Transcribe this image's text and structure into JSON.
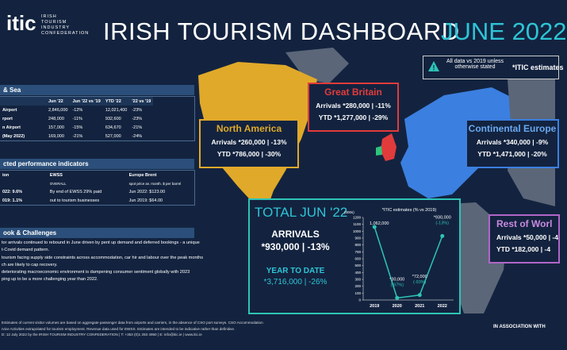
{
  "header": {
    "logo": "itic",
    "org": "IRISH TOURISM INDUSTRY CONFEDERATION",
    "title": "IRISH TOURISM DASHBOARD",
    "period": "JUNE 2022"
  },
  "notice": {
    "text": "All data vs 2019 unless otherwise stated",
    "estimates": "*ITIC estimates"
  },
  "air_sea": {
    "title": "& Sea",
    "columns": [
      "Jun '22",
      "Jun '22 vs '19",
      "YTD '22",
      "'22 vs '19"
    ],
    "rows": [
      [
        "Airport",
        "2,846,000",
        "-12%",
        "12,021,400",
        "-23%"
      ],
      [
        "rport",
        "248,000",
        "-11%",
        "932,600",
        "-23%"
      ],
      [
        "n Airport",
        "157,000",
        "-15%",
        "634,670",
        "-21%"
      ],
      [
        "(May 2022)",
        "169,000",
        "-21%",
        "527,000",
        "-24%"
      ]
    ]
  },
  "indicators": {
    "title": "cted performance indicators",
    "columns": [
      "ion",
      "EWSS",
      "Europe Brent"
    ],
    "subheads": [
      "OVERALL",
      "spot price av. month. $ per barrel"
    ],
    "rows": [
      [
        "022: 9.6%",
        "By end of EWSS 29% paid",
        "Jun 2022: $123.00"
      ],
      [
        "019: 1.1%",
        "out to tourism businesses",
        "Jun 2019: $64.00"
      ]
    ]
  },
  "outlook": {
    "title": "ook & Challenges",
    "lines": [
      "tor arrivals continued to rebound in June driven by pent up demand and deferred bookings - a unique",
      "t-Covid demand pattern.",
      "tourism facing supply side constraints across accommodation, car hir and labour over the peak months",
      "ch are likely to cap recovery.",
      "deteriorating macroeconomic environment is dampening consumer sentiment globally with 2023",
      "ping up to be a more challenging year than 2022."
    ]
  },
  "regions": [
    {
      "name": "Great Britain",
      "arrivals": "Arrivals *280,000 | -11%",
      "ytd": "YTD *1,277,000 | -29%"
    },
    {
      "name": "North America",
      "arrivals": "Arrivals *260,000 | -13%",
      "ytd": "YTD *786,000 | -30%"
    },
    {
      "name": "Continental Europe",
      "arrivals": "Arrivals *340,000 | -9%",
      "ytd": "YTD *1,471,000 | -20%"
    },
    {
      "name": "Rest of Worl",
      "arrivals": "Arrivals *50,000 | -4",
      "ytd": "YTD *182,000 | -4"
    }
  ],
  "total": {
    "title": "TOTAL JUN '22",
    "arrivals_label": "ARRIVALS",
    "arrivals": "*930,000 | -13%",
    "ytd_label": "YEAR TO DATE",
    "ytd": "*3,716,000 | -26%"
  },
  "chart_data": {
    "type": "line",
    "subtitle": "*ITIC estimates (% vs 2019)",
    "y_label": "(000s)",
    "categories": [
      "2019",
      "2020",
      "2021",
      "2022"
    ],
    "values": [
      1062,
      30,
      72,
      930
    ],
    "value_labels": [
      "1,062,000",
      "*30,000",
      "*72,000",
      "*930,000"
    ],
    "change_labels": [
      null,
      "(-97%)",
      "(-93%)",
      "(-13%)"
    ],
    "color": "#2ec4b6",
    "ylim": [
      0,
      1200
    ],
    "yticks": [
      0,
      100,
      200,
      300,
      400,
      500,
      600,
      700,
      800,
      900,
      1000,
      1100,
      1200
    ]
  },
  "footer": {
    "lines": [
      "Estimates of current visitor volumes are based on aggregate passenger data from airports and carriers, in the absence of CSO port surveys. CSO Accommodation",
      "rvice Activities extrapolated for tourism employment. Revenue data used for EWSS. Estimates are intended to be indicative rather than definitive.",
      "D: 12 July 2022 by the IRISH TOURISM INDUSTRY CONFEDERATION | T: +353 (0)1 293 4950 | E: info@itic.ie | www.itic.ie"
    ],
    "association": "IN ASSOCIATION WITH"
  }
}
